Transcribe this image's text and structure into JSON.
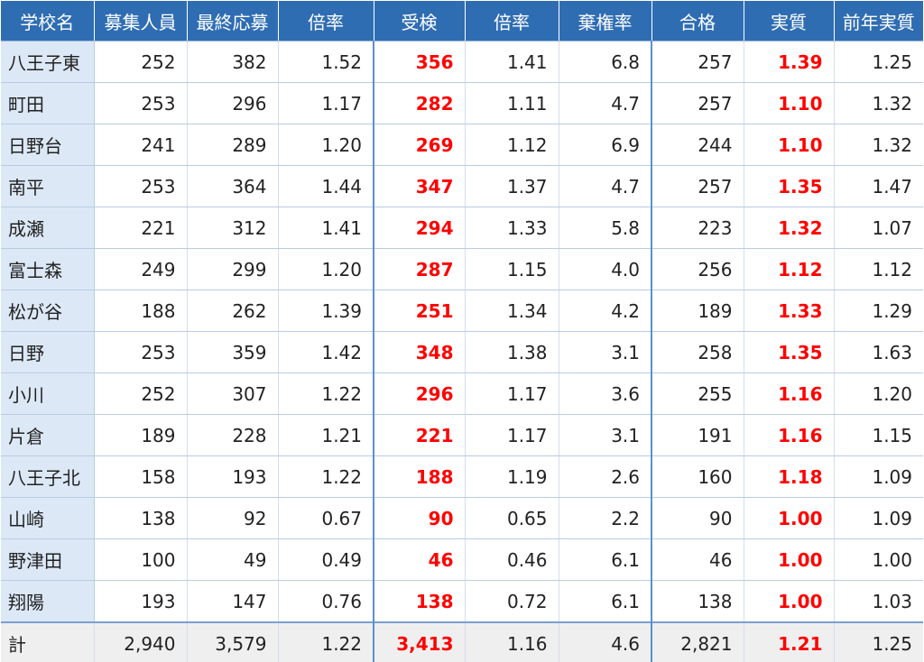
{
  "colors": {
    "header_bg": "#2f6db3",
    "header_text": "#ffffff",
    "name_col_bg": "#dce8f6",
    "total_row_bg": "#efefef",
    "highlight_red": "#ff0000"
  },
  "table": {
    "headers": [
      "学校名",
      "募集人員",
      "最終応募",
      "倍率",
      "受検",
      "倍率",
      "棄権率",
      "合格",
      "実質",
      "前年実質"
    ],
    "rows": [
      [
        "八王子東",
        "252",
        "382",
        "1.52",
        "356",
        "1.41",
        "6.8",
        "257",
        "1.39",
        "1.25"
      ],
      [
        "町田",
        "253",
        "296",
        "1.17",
        "282",
        "1.11",
        "4.7",
        "257",
        "1.10",
        "1.32"
      ],
      [
        "日野台",
        "241",
        "289",
        "1.20",
        "269",
        "1.12",
        "6.9",
        "244",
        "1.10",
        "1.32"
      ],
      [
        "南平",
        "253",
        "364",
        "1.44",
        "347",
        "1.37",
        "4.7",
        "257",
        "1.35",
        "1.47"
      ],
      [
        "成瀬",
        "221",
        "312",
        "1.41",
        "294",
        "1.33",
        "5.8",
        "223",
        "1.32",
        "1.07"
      ],
      [
        "富士森",
        "249",
        "299",
        "1.20",
        "287",
        "1.15",
        "4.0",
        "256",
        "1.12",
        "1.12"
      ],
      [
        "松が谷",
        "188",
        "262",
        "1.39",
        "251",
        "1.34",
        "4.2",
        "189",
        "1.33",
        "1.29"
      ],
      [
        "日野",
        "253",
        "359",
        "1.42",
        "348",
        "1.38",
        "3.1",
        "258",
        "1.35",
        "1.63"
      ],
      [
        "小川",
        "252",
        "307",
        "1.22",
        "296",
        "1.17",
        "3.6",
        "255",
        "1.16",
        "1.20"
      ],
      [
        "片倉",
        "189",
        "228",
        "1.21",
        "221",
        "1.17",
        "3.1",
        "191",
        "1.16",
        "1.15"
      ],
      [
        "八王子北",
        "158",
        "193",
        "1.22",
        "188",
        "1.19",
        "2.6",
        "160",
        "1.18",
        "1.09"
      ],
      [
        "山崎",
        "138",
        "92",
        "0.67",
        "90",
        "0.65",
        "2.2",
        "90",
        "1.00",
        "1.09"
      ],
      [
        "野津田",
        "100",
        "49",
        "0.49",
        "46",
        "0.46",
        "6.1",
        "46",
        "1.00",
        "1.00"
      ],
      [
        "翔陽",
        "193",
        "147",
        "0.76",
        "138",
        "0.72",
        "6.1",
        "138",
        "1.00",
        "1.03"
      ]
    ],
    "total": [
      "計",
      "2,940",
      "3,579",
      "1.22",
      "3,413",
      "1.16",
      "4.6",
      "2,821",
      "1.21",
      "1.25"
    ]
  }
}
